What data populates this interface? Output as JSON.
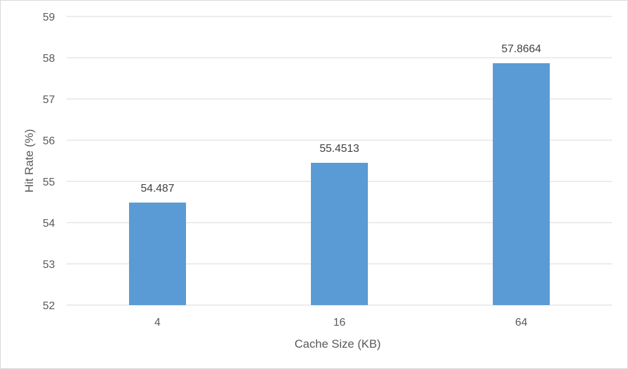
{
  "chart_data": {
    "type": "bar",
    "categories": [
      "4",
      "16",
      "64"
    ],
    "values": [
      54.487,
      55.4513,
      57.8664
    ],
    "data_labels": [
      "54.487",
      "55.4513",
      "57.8664"
    ],
    "xlabel": "Cache Size (KB)",
    "ylabel": "Hit Rate (%)",
    "ylim": [
      52,
      59
    ],
    "yticks": [
      "52",
      "53",
      "54",
      "55",
      "56",
      "57",
      "58",
      "59"
    ],
    "grid": true,
    "legend": "none",
    "bar_color": "#5b9bd5",
    "grid_color": "#d9d9d9"
  }
}
